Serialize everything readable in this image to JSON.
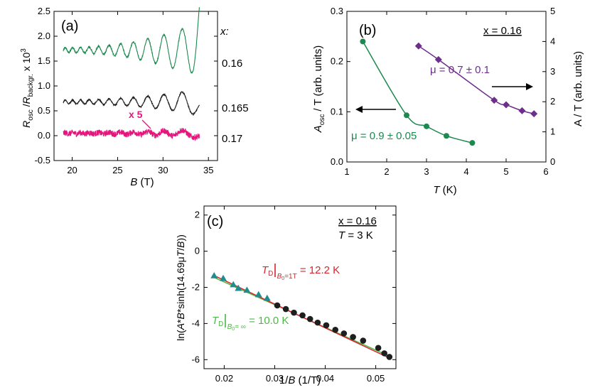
{
  "colors": {
    "green": "#1a8a4e",
    "black": "#1e1e1e",
    "magenta": "#e4157d",
    "purple": "#6e2e8c",
    "teal": "#1f8d8d",
    "red": "#d8262c",
    "lightgreen": "#4db848",
    "axis": "#000000"
  },
  "chart_data": [
    {
      "id": "a",
      "type": "line",
      "panel_label": "(a)",
      "xlabel_italic": "B",
      "xlabel_unit": " (T)",
      "ylabel": {
        "R1": "R",
        "sub1": "osc",
        "slash": " /",
        "R2": "R",
        "sub2": "backgr.",
        "times": " x 10",
        "sup": "3"
      },
      "xlim": [
        18,
        36
      ],
      "ylim": [
        -0.5,
        2.5
      ],
      "xticks": [
        20,
        25,
        30,
        35
      ],
      "yticks": [
        -0.5,
        0.0,
        0.5,
        1.0,
        1.5,
        2.0,
        2.5
      ],
      "ytick_labels": [
        "-0.5",
        "0.0",
        "0.5",
        "1.0",
        "1.5",
        "2.0",
        "2.5"
      ],
      "legend_header": "x:",
      "annotation": "x 5",
      "series": [
        {
          "name": "0.16",
          "color_key": "green",
          "x_range": [
            19,
            34
          ],
          "offset": 1.72,
          "osc_amp_start": 0.05,
          "osc_amp_end": 0.55,
          "F": 480,
          "phase": 0.3,
          "noise": 0.03,
          "end_rise": 0.6
        },
        {
          "name": "0.165",
          "color_key": "black",
          "x_range": [
            19,
            34
          ],
          "offset": 0.68,
          "osc_amp_start": 0.04,
          "osc_amp_end": 0.25,
          "F": 480,
          "phase": 0.3,
          "noise": 0.025,
          "end_rise": -0.2
        },
        {
          "name": "0.17",
          "color_key": "magenta",
          "x_range": [
            19,
            34
          ],
          "offset": 0.05,
          "osc_amp_start": 0.01,
          "osc_amp_end": 0.08,
          "F": 480,
          "phase": 0.3,
          "noise": 0.12,
          "end_rise": -0.1
        }
      ]
    },
    {
      "id": "b",
      "type": "scatter",
      "panel_label": "(b)",
      "note": "x = 0.16",
      "xlabel_italic": "T",
      "xlabel_unit": " (K)",
      "ylabel_left": {
        "A": "A",
        "sub": "osc",
        "rest": "/ T (arb. units)"
      },
      "ylabel_right": "A / T (arb. units)",
      "xlim": [
        1,
        6
      ],
      "ylim_left": [
        0.0,
        0.3
      ],
      "ylim_right": [
        0,
        5
      ],
      "xticks": [
        1,
        2,
        3,
        4,
        5,
        6
      ],
      "yticks_left": [
        0.0,
        0.1,
        0.2,
        0.3
      ],
      "yticks_left_labels": [
        "0.0",
        "0.1",
        "0.2",
        "0.3"
      ],
      "yticks_right": [
        0,
        1,
        2,
        3,
        4,
        5
      ],
      "series": [
        {
          "name": "mu = 0.9 ± 0.05",
          "label": "μ = 0.9 ± 0.05",
          "color_key": "green",
          "marker": "circle",
          "axis": "left",
          "x": [
            1.4,
            2.5,
            3.0,
            3.5,
            4.15
          ],
          "y": [
            0.24,
            0.093,
            0.071,
            0.052,
            0.038
          ]
        },
        {
          "name": "mu = 0.7 ± 0.1",
          "label": "μ = 0.7 ± 0.1",
          "color_key": "purple",
          "marker": "diamond",
          "axis": "right",
          "x": [
            2.8,
            3.3,
            4.7,
            5.0,
            5.4,
            5.7
          ],
          "y": [
            3.85,
            3.4,
            2.05,
            1.9,
            1.7,
            1.6
          ]
        }
      ]
    },
    {
      "id": "c",
      "type": "scatter",
      "panel_label": "(c)",
      "note1": "x = 0.16",
      "note2_italic": "T",
      "note2_rest": " = 3 K",
      "xlabel": "1/",
      "xlabel_italic": "B",
      "xlabel_unit": " (1/T)",
      "ylabel": {
        "pre": "ln(",
        "A": "A",
        "s1": "*",
        "B": "B",
        "s2": "*sinh(14.69",
        "mu": "μ",
        "T": "T",
        "slash": "/",
        "B2": "B",
        "close": "))"
      },
      "xlim": [
        0.016,
        0.054
      ],
      "ylim": [
        -6.5,
        2.5
      ],
      "xticks": [
        0.02,
        0.03,
        0.04,
        0.05
      ],
      "xtick_labels": [
        "0.02",
        "0.03",
        "0.04",
        "0.05"
      ],
      "yticks": [
        -6,
        -4,
        -2,
        0,
        2
      ],
      "ytick_labels": [
        "-6",
        "-4",
        "-2",
        "0",
        "2"
      ],
      "fit_lines": [
        {
          "color_key": "lightgreen",
          "x": [
            0.018,
            0.053
          ],
          "y": [
            -1.45,
            -5.85
          ]
        },
        {
          "color_key": "red",
          "x": [
            0.018,
            0.053
          ],
          "y": [
            -1.35,
            -5.95
          ]
        }
      ],
      "label_red": {
        "T": "T",
        "sub": "D",
        "bar": "|",
        "b": "B",
        "bsub": "0",
        "cond": "=1T",
        "value": " = 12.2 K"
      },
      "label_green": {
        "T": "T",
        "sub": "D",
        "bar": "|",
        "b": "B",
        "bsub": "0",
        "cond": "= ∞",
        "value": " = 10.0 K"
      },
      "series": [
        {
          "name": "triangles",
          "color_key": "teal",
          "marker": "triangle",
          "x": [
            0.018,
            0.0198,
            0.0218,
            0.0228,
            0.0245,
            0.0268,
            0.0285
          ],
          "y": [
            -1.35,
            -1.5,
            -1.85,
            -2.05,
            -2.15,
            -2.4,
            -2.6
          ]
        },
        {
          "name": "circles",
          "color_key": "black",
          "marker": "circle",
          "x": [
            0.0305,
            0.0322,
            0.0338,
            0.0355,
            0.037,
            0.0385,
            0.0402,
            0.042,
            0.0437,
            0.0455,
            0.0475,
            0.0505,
            0.0517,
            0.0527
          ],
          "y": [
            -3.0,
            -3.2,
            -3.4,
            -3.55,
            -3.75,
            -3.95,
            -4.1,
            -4.35,
            -4.55,
            -4.75,
            -4.95,
            -5.35,
            -5.65,
            -5.85
          ]
        }
      ]
    }
  ]
}
